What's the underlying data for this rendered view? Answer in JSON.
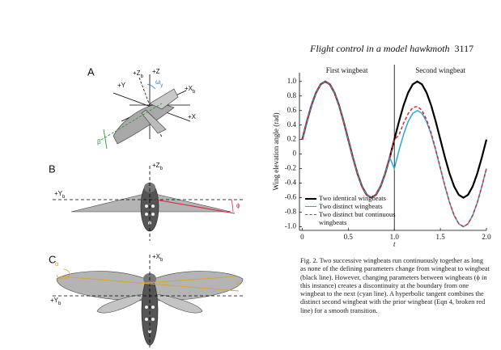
{
  "header": {
    "title": "Flight control in a model hawkmoth",
    "page": "3117"
  },
  "panels": {
    "A": {
      "label": "A",
      "axes": [
        {
          "text": "+Z",
          "sub": "b"
        },
        {
          "text": "+Z",
          "sub": ""
        },
        {
          "text": "+Y",
          "sub": ""
        },
        {
          "text": "+X",
          "sub": "b"
        },
        {
          "text": "+X",
          "sub": ""
        }
      ],
      "omega": {
        "text": "ω",
        "sub": "y"
      },
      "beta": "β"
    },
    "B": {
      "label": "B",
      "axes": [
        {
          "text": "+Z",
          "sub": "b"
        },
        {
          "text": "+Y",
          "sub": "b"
        }
      ],
      "phi": "ϕ"
    },
    "C": {
      "label": "C",
      "axes": [
        {
          "text": "+X",
          "sub": "b"
        },
        {
          "text": "+Y",
          "sub": "b"
        }
      ],
      "alpha": "α",
      "theta": "θ"
    }
  },
  "chart_data": {
    "type": "line",
    "annotations": [
      "First wingbeat",
      "Second wingbeat"
    ],
    "boundary": 1,
    "xlabel": "t",
    "ylabel": "Wing elevation angle (rad)",
    "x": [
      0,
      0.05,
      0.1,
      0.15,
      0.2,
      0.25,
      0.3,
      0.35,
      0.4,
      0.45,
      0.5,
      0.55,
      0.6,
      0.65,
      0.7,
      0.75,
      0.8,
      0.85,
      0.9,
      0.95,
      1,
      1.05,
      1.1,
      1.15,
      1.2,
      1.25,
      1.3,
      1.35,
      1.4,
      1.45,
      1.5,
      1.55,
      1.6,
      1.65,
      1.7,
      1.75,
      1.8,
      1.85,
      1.9,
      1.95,
      2
    ],
    "series": [
      {
        "name": "Two identical wingbeats",
        "color": "#000000",
        "dash": false,
        "width": 2.2,
        "values": [
          0.2,
          0.447,
          0.67,
          0.847,
          0.961,
          1,
          0.961,
          0.847,
          0.67,
          0.447,
          0.2,
          -0.047,
          -0.27,
          -0.447,
          -0.561,
          -0.6,
          -0.561,
          -0.447,
          -0.27,
          -0.047,
          0.2,
          0.447,
          0.67,
          0.847,
          0.961,
          1,
          0.961,
          0.847,
          0.67,
          0.447,
          0.2,
          -0.047,
          -0.27,
          -0.447,
          -0.561,
          -0.6,
          -0.561,
          -0.447,
          -0.27,
          -0.047,
          0.2
        ]
      },
      {
        "name": "Two distinct wingbeats",
        "color": "#29a9d8",
        "dash": false,
        "width": 1.5,
        "values": [
          0.2,
          0.447,
          0.67,
          0.847,
          0.961,
          1,
          0.961,
          0.847,
          0.67,
          0.447,
          0.2,
          -0.047,
          -0.27,
          -0.447,
          -0.561,
          -0.6,
          -0.561,
          -0.447,
          -0.27,
          -0.047,
          -0.2,
          0.047,
          0.27,
          0.447,
          0.561,
          0.6,
          0.561,
          0.447,
          0.27,
          0.047,
          -0.2,
          -0.447,
          -0.67,
          -0.847,
          -0.961,
          -1,
          -0.961,
          -0.847,
          -0.67,
          -0.447,
          -0.2
        ]
      },
      {
        "name": "Two distinct but continuous wingbeats",
        "color": "#d42a3a",
        "dash": true,
        "width": 1.5,
        "values": [
          0.2,
          0.447,
          0.67,
          0.847,
          0.961,
          1,
          0.961,
          0.847,
          0.67,
          0.447,
          0.2,
          -0.047,
          -0.27,
          -0.447,
          -0.561,
          -0.6,
          -0.561,
          -0.447,
          -0.27,
          -0.047,
          0.2,
          0.262,
          0.424,
          0.557,
          0.64,
          0.657,
          0.602,
          0.476,
          0.291,
          0.062,
          -0.189,
          -0.439,
          -0.664,
          -0.843,
          -0.958,
          -0.998,
          -0.959,
          -0.846,
          -0.669,
          -0.447,
          -0.2
        ]
      }
    ],
    "xlim": [
      -0.03,
      2
    ],
    "ylim": [
      -1.05,
      1.12
    ],
    "xticks": [
      0,
      0.5,
      {
        "value": 1,
        "label": "1.0"
      },
      1.5,
      {
        "value": 2,
        "label": "2.0"
      }
    ],
    "yticks": [
      {
        "value": 1,
        "label": "1.0"
      },
      0.8,
      0.6,
      0.4,
      0.2,
      0,
      -0.2,
      -0.4,
      -0.6,
      -0.8,
      {
        "value": -1,
        "label": "-1.0"
      }
    ],
    "grid": false,
    "legend": "lower-left"
  },
  "caption": [
    "Fig. 2. Two successive wingbeats run continuously together as long",
    "as none of the defining parameters change from wingbeat to wingbeat",
    "(black line). However, changing parameters between wingbeats (ϕ in",
    "this instance) creates a discontinuity at the boundary from one",
    "wingbeat to the next (cyan line). A hyperbolic tangent combines the",
    "distinct second wingbeat with the prior wingbeat (Eqn 4, broken red",
    "line) for a smooth transition."
  ]
}
